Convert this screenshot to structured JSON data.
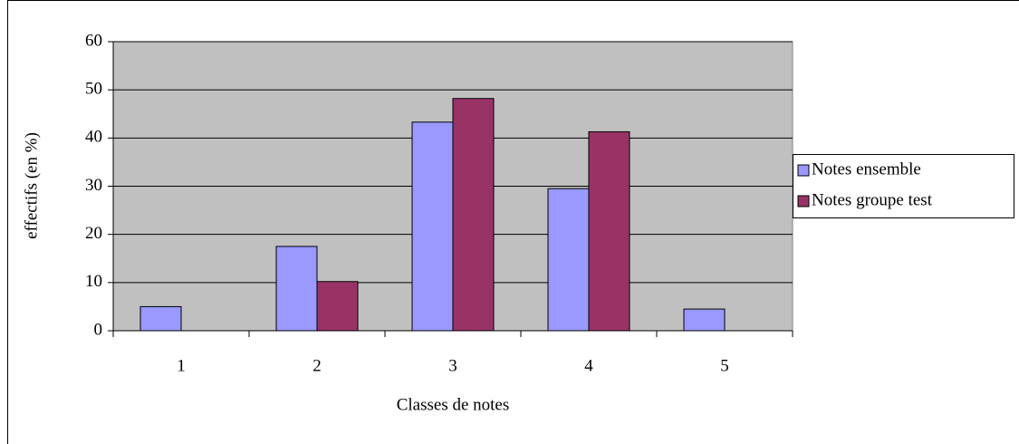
{
  "chart_data": {
    "type": "bar",
    "x_label": "Classes de notes",
    "y_label": "effectifs (en %)",
    "categories": [
      "1",
      "2",
      "3",
      "4",
      "5"
    ],
    "series": [
      {
        "name": "Notes ensemble",
        "color": "#9999ff",
        "values": [
          5,
          17.5,
          43.3,
          29.5,
          4.5
        ]
      },
      {
        "name": "Notes groupe test",
        "color": "#993366",
        "values": [
          null,
          10.2,
          48.2,
          41.3,
          null
        ]
      }
    ],
    "ylim": [
      0,
      60
    ],
    "yticks": [
      0,
      10,
      20,
      30,
      40,
      50,
      60
    ],
    "grid": true,
    "legend": "right"
  }
}
